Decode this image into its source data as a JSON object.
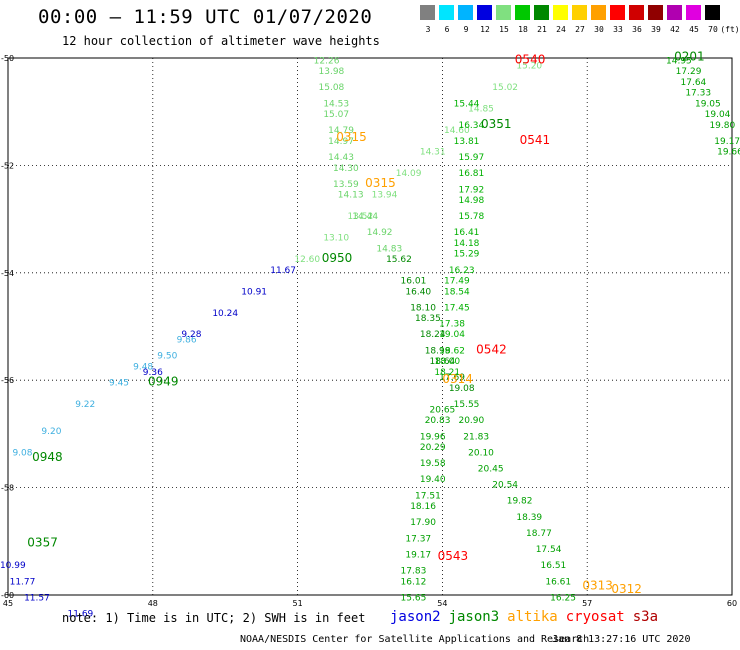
{
  "header": {
    "title": "00:00 – 11:59 UTC 01/07/2020",
    "subtitle": "12 hour collection of altimeter wave heights"
  },
  "legend": {
    "unit": "(ft)",
    "bins": [
      {
        "label": "3",
        "color": "#808080"
      },
      {
        "label": "6",
        "color": "#00e5ff"
      },
      {
        "label": "9",
        "color": "#00b4ff"
      },
      {
        "label": "12",
        "color": "#0000e0"
      },
      {
        "label": "15",
        "color": "#80e080"
      },
      {
        "label": "18",
        "color": "#00c800"
      },
      {
        "label": "21",
        "color": "#008800"
      },
      {
        "label": "24",
        "color": "#ffff00"
      },
      {
        "label": "27",
        "color": "#ffd000"
      },
      {
        "label": "30",
        "color": "#ffa000"
      },
      {
        "label": "33",
        "color": "#ff0000"
      },
      {
        "label": "36",
        "color": "#d00000"
      },
      {
        "label": "39",
        "color": "#900000"
      },
      {
        "label": "42",
        "color": "#b000b0"
      },
      {
        "label": "45",
        "color": "#e000e0"
      },
      {
        "label": "70",
        "color": "#000000"
      }
    ]
  },
  "map": {
    "lon_range": [
      45,
      60
    ],
    "lat_range": [
      -60,
      -50
    ],
    "lon_ticks": [
      "45",
      "48",
      "51",
      "54",
      "57",
      "60"
    ],
    "lat_ticks": [
      "-50",
      "-52",
      "-54",
      "-56",
      "-58",
      "-60"
    ],
    "tracks": [
      {
        "id": "t1",
        "color": "#40b0e0",
        "points": [
          [
            45.3,
            -57.4,
            "9.08"
          ],
          [
            45.9,
            -57.0,
            "9.20"
          ],
          [
            46.6,
            -56.5,
            "9.22"
          ],
          [
            47.3,
            -56.1,
            "9.45"
          ],
          [
            47.8,
            -55.8,
            "9.48"
          ],
          [
            48.3,
            -55.6,
            "9.50"
          ],
          [
            48.7,
            -55.3,
            "9.86"
          ]
        ]
      },
      {
        "id": "t2",
        "color": "#0000c8",
        "points": [
          [
            48.0,
            -55.9,
            "9.36"
          ],
          [
            48.8,
            -55.2,
            "9.28"
          ],
          [
            49.5,
            -54.8,
            "10.24"
          ],
          [
            50.1,
            -54.4,
            "10.91"
          ],
          [
            50.7,
            -54.0,
            "11.67"
          ]
        ]
      },
      {
        "id": "t3",
        "color": "#80e080",
        "points": [
          [
            51.2,
            -53.8,
            "12.60"
          ],
          [
            51.8,
            -53.4,
            "13.10"
          ],
          [
            52.3,
            -53.0,
            "13.52"
          ],
          [
            52.8,
            -52.6,
            "13.94"
          ],
          [
            53.3,
            -52.2,
            "14.09"
          ],
          [
            53.8,
            -51.8,
            "14.31"
          ],
          [
            54.3,
            -51.4,
            "14.60"
          ],
          [
            54.8,
            -51.0,
            "14.85"
          ],
          [
            55.3,
            -50.6,
            "15.02"
          ],
          [
            55.8,
            -50.2,
            "15.20"
          ]
        ]
      },
      {
        "id": "t4",
        "color": "#6ad46a",
        "points": [
          [
            51.6,
            -50.1,
            "12.26"
          ],
          [
            51.7,
            -50.3,
            "13.98"
          ],
          [
            51.7,
            -50.6,
            "15.08"
          ],
          [
            51.8,
            -50.9,
            "14.53"
          ],
          [
            51.8,
            -51.1,
            "15.07"
          ],
          [
            51.9,
            -51.4,
            "14.79"
          ],
          [
            51.9,
            -51.6,
            "14.97"
          ],
          [
            51.9,
            -51.9,
            "14.43"
          ],
          [
            52.0,
            -52.1,
            "14.30"
          ],
          [
            52.0,
            -52.4,
            "13.59"
          ],
          [
            52.1,
            -52.6,
            "14.13"
          ],
          [
            52.4,
            -53.0,
            "14.44"
          ],
          [
            52.7,
            -53.3,
            "14.92"
          ],
          [
            52.9,
            -53.6,
            "14.83"
          ]
        ]
      },
      {
        "id": "t5",
        "color": "#008800",
        "points": [
          [
            53.1,
            -53.8,
            "15.62"
          ],
          [
            53.4,
            -54.2,
            "16.01"
          ],
          [
            53.5,
            -54.4,
            "16.40"
          ],
          [
            53.6,
            -54.7,
            "18.10"
          ],
          [
            53.7,
            -54.9,
            "18.35"
          ],
          [
            53.8,
            -55.2,
            "18.24"
          ],
          [
            53.9,
            -55.5,
            "18.99"
          ],
          [
            54.0,
            -55.7,
            "18.64"
          ],
          [
            54.2,
            -56.0,
            "17.69"
          ],
          [
            54.4,
            -56.2,
            "19.08"
          ]
        ]
      },
      {
        "id": "t6",
        "color": "#00b000",
        "points": [
          [
            54.5,
            -50.9,
            "15.44"
          ],
          [
            54.6,
            -51.3,
            "16.34"
          ],
          [
            54.5,
            -51.6,
            "13.81"
          ],
          [
            54.6,
            -51.9,
            "15.97"
          ],
          [
            54.6,
            -52.2,
            "16.81"
          ],
          [
            54.6,
            -52.5,
            "17.92"
          ],
          [
            54.6,
            -52.7,
            "14.98"
          ],
          [
            54.6,
            -53.0,
            "15.78"
          ],
          [
            54.5,
            -53.3,
            "16.41"
          ],
          [
            54.5,
            -53.5,
            "14.18"
          ],
          [
            54.5,
            -53.7,
            "15.29"
          ],
          [
            54.4,
            -54.0,
            "16.23"
          ],
          [
            54.3,
            -54.2,
            "17.49"
          ],
          [
            54.3,
            -54.4,
            "18.54"
          ],
          [
            54.3,
            -54.7,
            "17.45"
          ],
          [
            54.2,
            -55.0,
            "17.38"
          ],
          [
            54.2,
            -55.2,
            "19.04"
          ],
          [
            54.2,
            -55.5,
            "18.62"
          ],
          [
            54.1,
            -55.7,
            "18.00"
          ],
          [
            54.1,
            -55.9,
            "18.21"
          ]
        ]
      },
      {
        "id": "t7",
        "color": "#00a000",
        "points": [
          [
            54.0,
            -56.6,
            "20.65"
          ],
          [
            53.9,
            -56.8,
            "20.83"
          ],
          [
            53.8,
            -57.1,
            "19.96"
          ],
          [
            53.8,
            -57.3,
            "20.29"
          ],
          [
            53.8,
            -57.6,
            "19.58"
          ],
          [
            53.8,
            -57.9,
            "19.40"
          ],
          [
            53.7,
            -58.2,
            "17.51"
          ],
          [
            53.6,
            -58.4,
            "18.16"
          ],
          [
            53.6,
            -58.7,
            "17.90"
          ],
          [
            53.5,
            -59.0,
            "17.37"
          ],
          [
            53.5,
            -59.3,
            "19.17"
          ],
          [
            53.4,
            -59.6,
            "17.83"
          ],
          [
            53.4,
            -59.8,
            "16.12"
          ],
          [
            53.4,
            -60.1,
            "15.65"
          ]
        ]
      },
      {
        "id": "t8",
        "color": "#00a000",
        "points": [
          [
            54.5,
            -56.5,
            "15.55"
          ],
          [
            54.6,
            -56.8,
            "20.90"
          ],
          [
            54.7,
            -57.1,
            "21.83"
          ],
          [
            54.8,
            -57.4,
            "20.10"
          ],
          [
            55.0,
            -57.7,
            "20.45"
          ],
          [
            55.3,
            -58.0,
            "20.54"
          ],
          [
            55.6,
            -58.3,
            "19.82"
          ],
          [
            55.8,
            -58.6,
            "18.39"
          ],
          [
            56.0,
            -58.9,
            "18.77"
          ],
          [
            56.2,
            -59.2,
            "17.54"
          ],
          [
            56.3,
            -59.5,
            "16.51"
          ],
          [
            56.4,
            -59.8,
            "16.61"
          ],
          [
            56.5,
            -60.1,
            "16.25"
          ]
        ]
      },
      {
        "id": "t9",
        "color": "#00a000",
        "points": [
          [
            58.9,
            -50.1,
            "14.95"
          ],
          [
            59.1,
            -50.3,
            "17.29"
          ],
          [
            59.2,
            -50.5,
            "17.64"
          ],
          [
            59.3,
            -50.7,
            "17.33"
          ],
          [
            59.5,
            -50.9,
            "19.05"
          ],
          [
            59.7,
            -51.1,
            "19.04"
          ],
          [
            59.8,
            -51.3,
            "19.80"
          ],
          [
            59.9,
            -51.6,
            "19.17"
          ],
          [
            60.0,
            -51.8,
            "19.66"
          ]
        ]
      },
      {
        "id": "t10",
        "color": "#0000c8",
        "points": [
          [
            45.1,
            -59.5,
            "10.99"
          ],
          [
            45.3,
            -59.8,
            "11.77"
          ],
          [
            45.6,
            -60.1,
            "11.57"
          ],
          [
            46.5,
            -60.4,
            "11.69"
          ]
        ]
      }
    ],
    "passes": [
      {
        "label": "0201",
        "color": "#008800",
        "lon": 58.8,
        "lat": -50.05
      },
      {
        "label": "0540",
        "color": "#ff0000",
        "lon": 55.5,
        "lat": -50.1
      },
      {
        "label": "0315",
        "color": "#ffa000",
        "lon": 51.8,
        "lat": -51.55
      },
      {
        "label": "0541",
        "color": "#ff0000",
        "lon": 55.6,
        "lat": -51.6
      },
      {
        "label": "0351",
        "color": "#008800",
        "lon": 54.8,
        "lat": -51.3
      },
      {
        "label": "0315",
        "color": "#ffa000",
        "lon": 52.4,
        "lat": -52.4
      },
      {
        "label": "0950",
        "color": "#008800",
        "lon": 51.5,
        "lat": -53.8
      },
      {
        "label": "0542",
        "color": "#ff0000",
        "lon": 54.7,
        "lat": -55.5
      },
      {
        "label": "0314",
        "color": "#ffa000",
        "lon": 54.0,
        "lat": -56.05
      },
      {
        "label": "0949",
        "color": "#008800",
        "lon": 47.9,
        "lat": -56.1
      },
      {
        "label": "0948",
        "color": "#008800",
        "lon": 45.5,
        "lat": -57.5
      },
      {
        "label": "0543",
        "color": "#ff0000",
        "lon": 53.9,
        "lat": -59.35
      },
      {
        "label": "0313",
        "color": "#ffa000",
        "lon": 56.9,
        "lat": -59.9
      },
      {
        "label": "0357",
        "color": "#008800",
        "lon": 45.4,
        "lat": -59.1
      },
      {
        "label": "0312",
        "color": "#ffa000",
        "lon": 57.5,
        "lat": -60.4
      }
    ]
  },
  "footer": {
    "note": "note: 1) Time is in UTC; 2) SWH is in feet",
    "satellites": [
      {
        "name": "jason2",
        "color": "#0000e0"
      },
      {
        "name": "jason3",
        "color": "#008800"
      },
      {
        "name": "altika",
        "color": "#ffa000"
      },
      {
        "name": "cryosat",
        "color": "#ff0000"
      },
      {
        "name": "s3a",
        "color": "#b00000"
      }
    ],
    "credit": "NOAA/NESDIS Center for Satellite Applications and Research",
    "timestamp": "Jan  8 13:27:16 UTC 2020"
  }
}
